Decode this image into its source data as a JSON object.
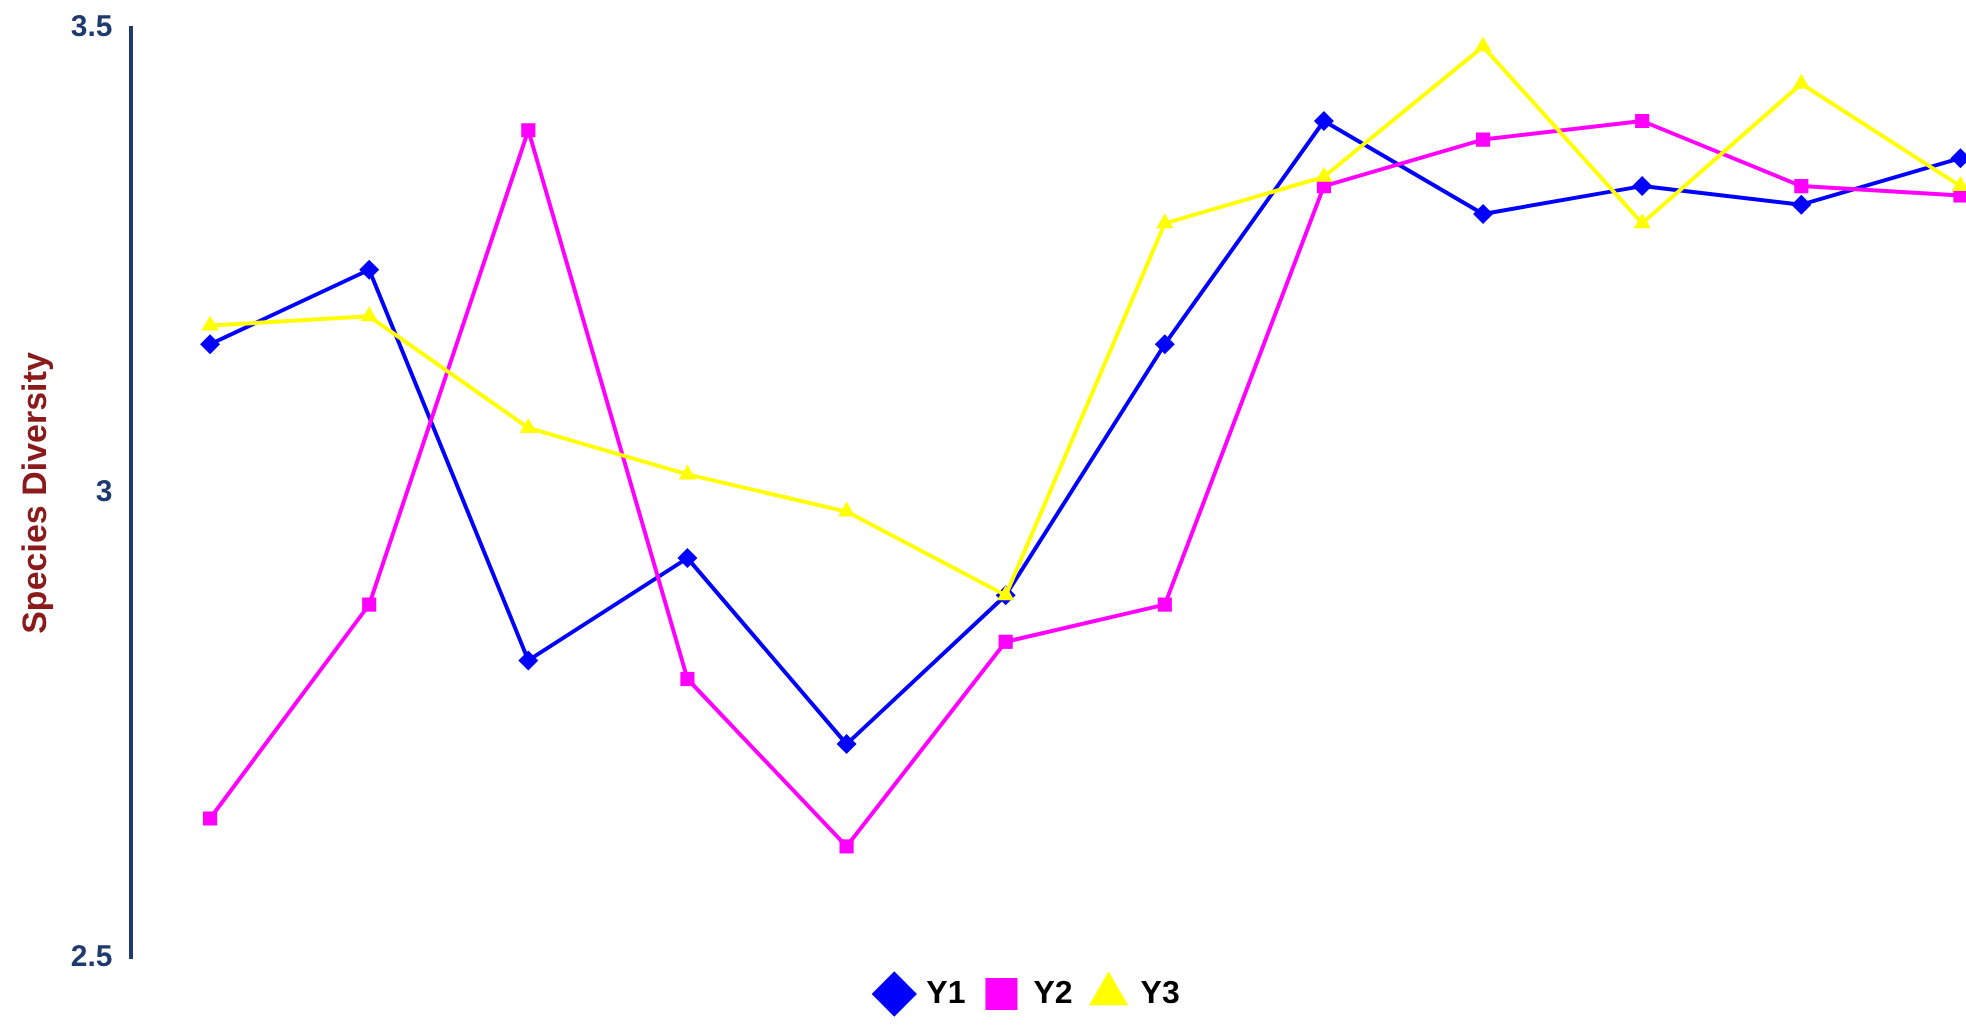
{
  "chart_data": {
    "type": "line",
    "ylabel": "Species Diversity",
    "categories": [
      null,
      null,
      null,
      null,
      null,
      null,
      null,
      null,
      null,
      null,
      null,
      null
    ],
    "series": [
      {
        "name": "Y1",
        "color": "#0000ff",
        "marker": "diamond",
        "values": [
          3.16,
          3.24,
          2.82,
          2.93,
          2.73,
          2.89,
          3.16,
          3.4,
          3.3,
          3.33,
          3.31,
          3.36
        ]
      },
      {
        "name": "Y2",
        "color": "#ff00ff",
        "marker": "square",
        "values": [
          2.65,
          2.88,
          3.39,
          2.8,
          2.62,
          2.84,
          2.88,
          3.33,
          3.38,
          3.4,
          3.33,
          3.32
        ]
      },
      {
        "name": "Y3",
        "color": "#ffff00",
        "marker": "triangle",
        "values": [
          3.18,
          3.19,
          3.07,
          3.02,
          2.98,
          2.89,
          3.29,
          3.34,
          3.48,
          3.29,
          3.44,
          3.33
        ]
      }
    ],
    "ylim": [
      2.5,
      3.5
    ],
    "yticks": [
      2.5,
      3,
      3.5
    ],
    "grid": false,
    "legend": "bottom",
    "tick_labels": "y"
  }
}
